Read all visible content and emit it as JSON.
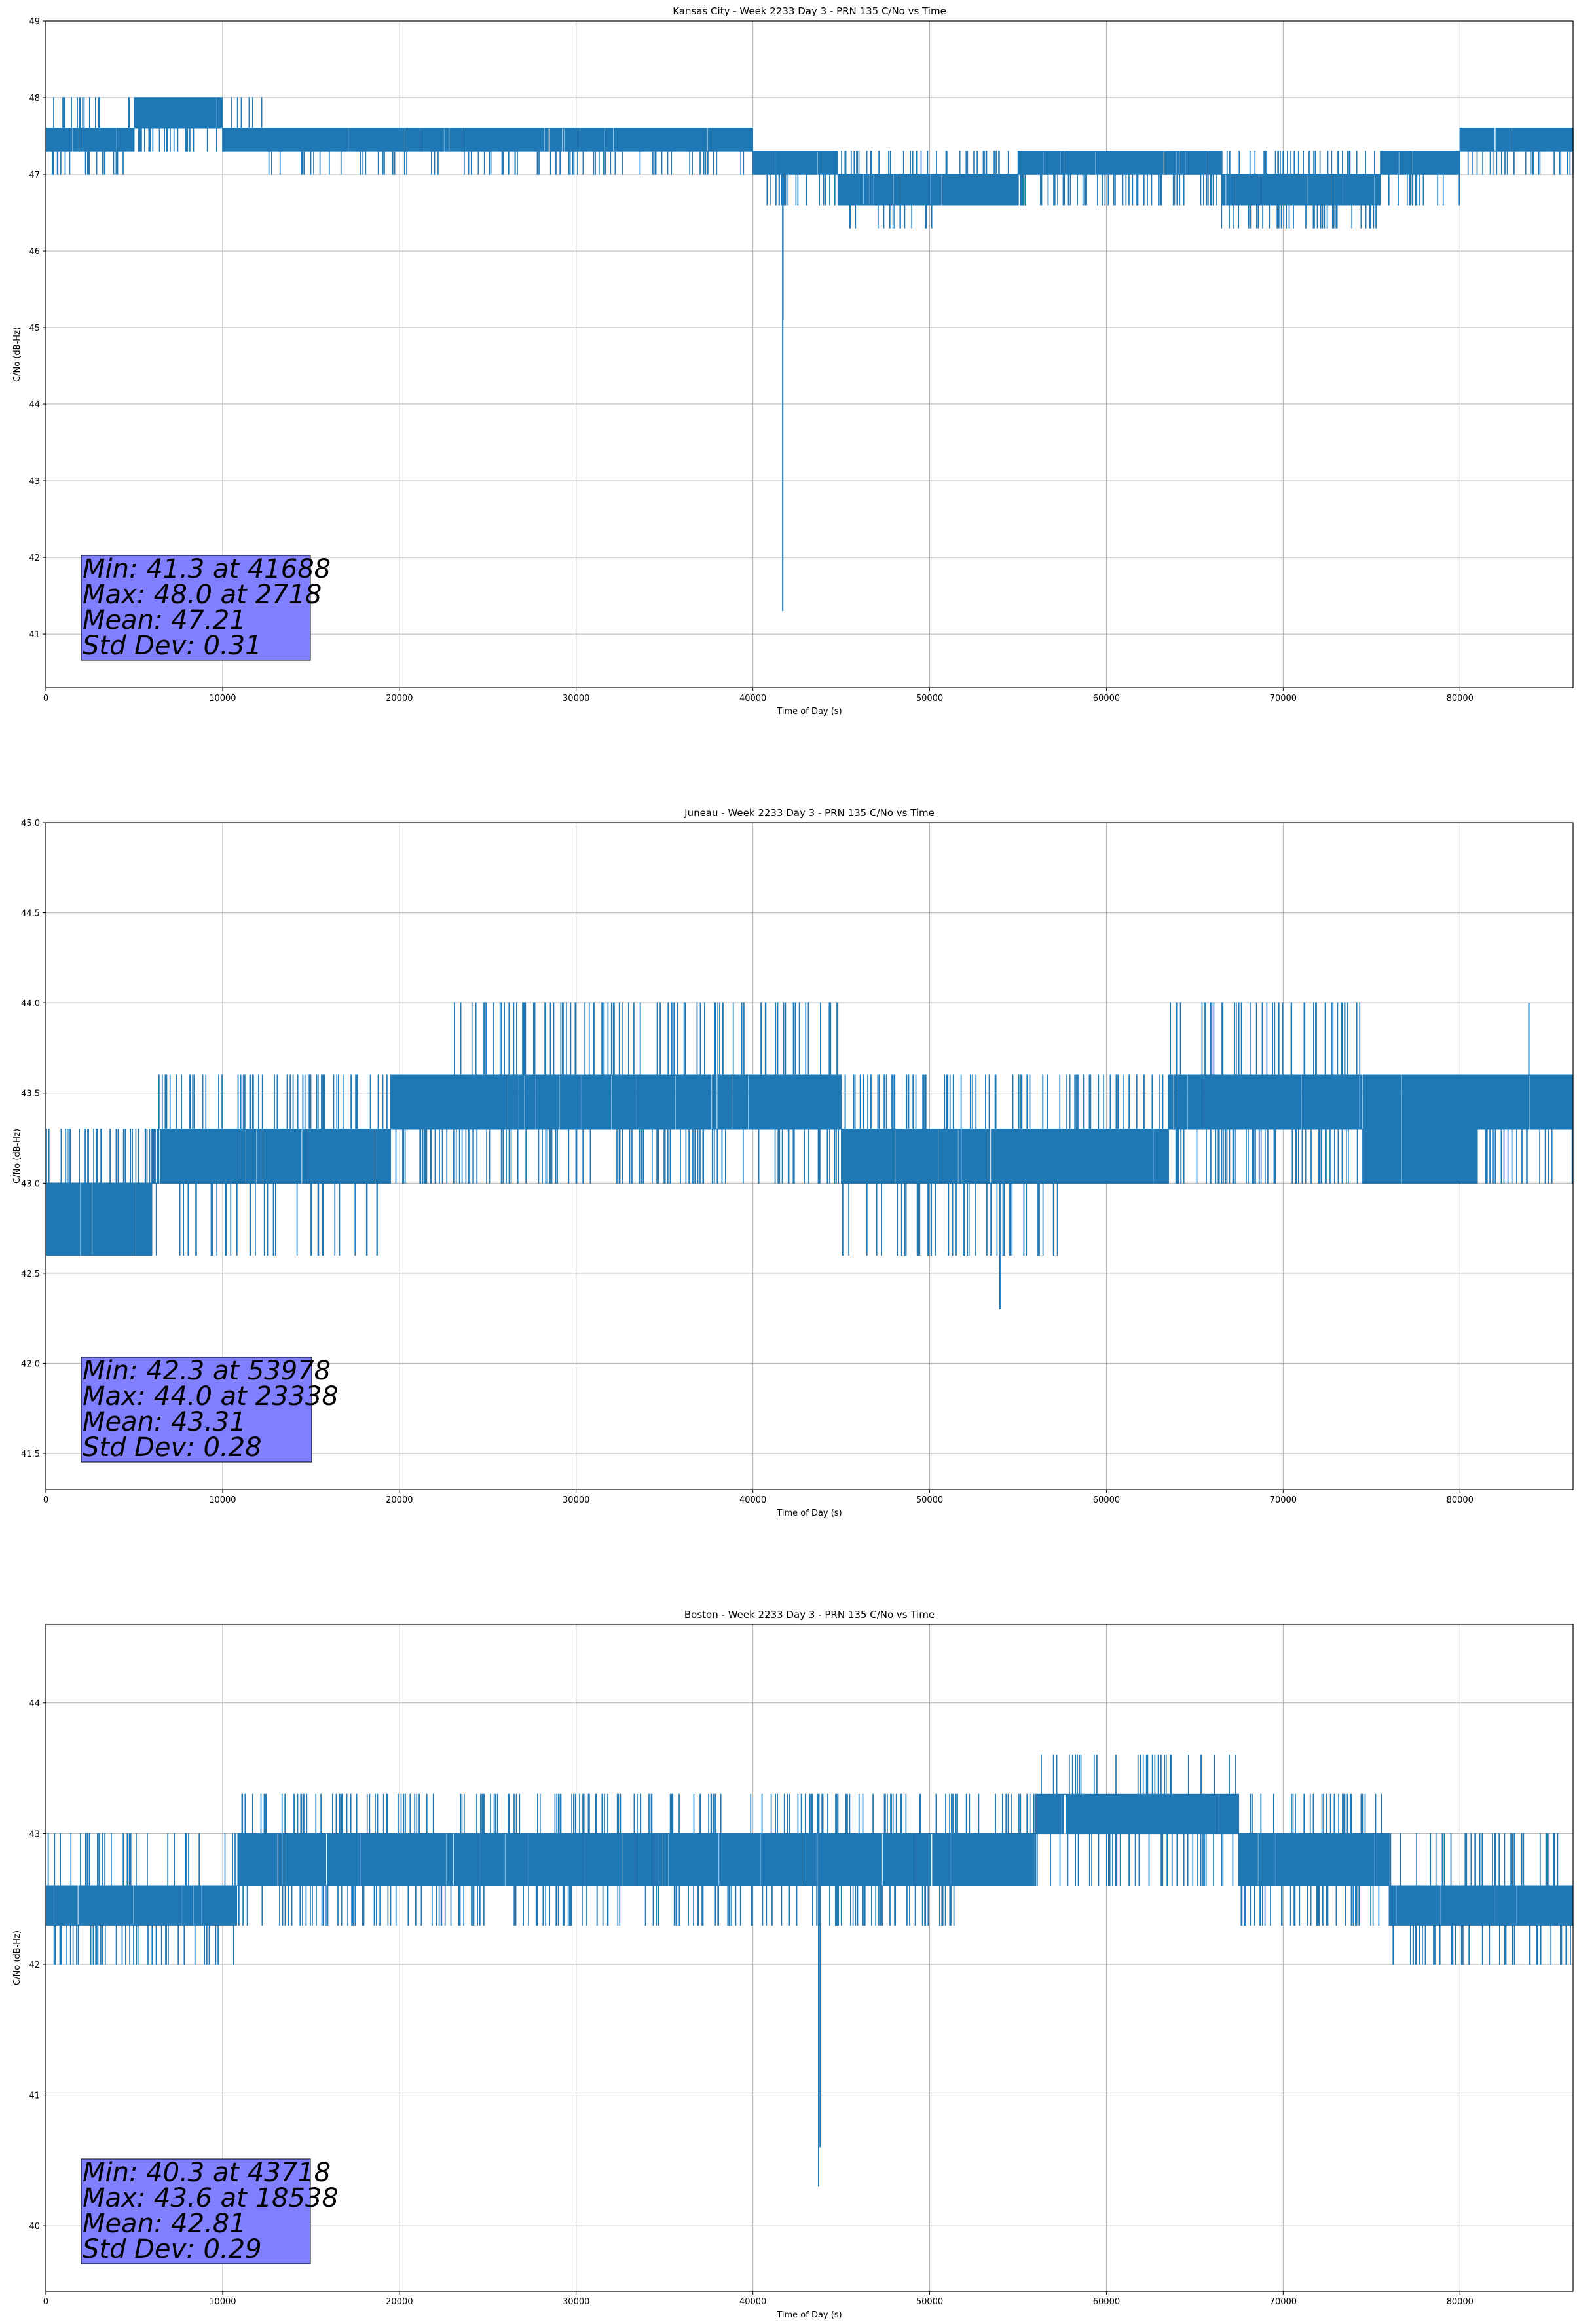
{
  "chart_data": [
    {
      "type": "line",
      "title": "Kansas City - Week 2233 Day 3 - PRN 135 C/No vs Time",
      "xlabel": "Time of Day (s)",
      "ylabel": "C/No (dB-Hz)",
      "xlim": [
        0,
        86400
      ],
      "ylim": [
        40.3,
        49
      ],
      "xticks": [
        0,
        10000,
        20000,
        30000,
        40000,
        50000,
        60000,
        70000,
        80000
      ],
      "yticks": [
        41,
        42,
        43,
        44,
        45,
        46,
        47,
        48,
        49
      ],
      "ytick_labels": [
        "41",
        "42",
        "43",
        "44",
        "45",
        "46",
        "47",
        "48",
        "49"
      ],
      "grid": true,
      "series_color": "#1f77b4",
      "stats_box_color": "#8080ff",
      "stats": [
        "Min: 41.3 at 41688",
        "Max: 48.0 at 2718",
        "Mean: 47.21",
        "Std Dev: 0.31"
      ],
      "segments": [
        {
          "x0": 0,
          "x1": 5000,
          "lo": 47.3,
          "hi": 47.6,
          "uh": 48.0,
          "dl": 47.0
        },
        {
          "x0": 5000,
          "x1": 10000,
          "lo": 47.6,
          "hi": 48.0,
          "uh": 48.0,
          "dl": 47.3
        },
        {
          "x0": 10000,
          "x1": 12300,
          "lo": 47.3,
          "hi": 47.6,
          "uh": 48.0,
          "dl": 47.3
        },
        {
          "x0": 12300,
          "x1": 36000,
          "lo": 47.3,
          "hi": 47.6,
          "uh": 47.6,
          "dl": 47.0
        },
        {
          "x0": 36000,
          "x1": 40000,
          "lo": 47.3,
          "hi": 47.6,
          "uh": 47.6,
          "dl": 47.0
        },
        {
          "x0": 40000,
          "x1": 44800,
          "lo": 47.0,
          "hi": 47.3,
          "uh": 47.3,
          "dl": 46.6
        },
        {
          "x0": 44800,
          "x1": 50500,
          "lo": 46.6,
          "hi": 47.0,
          "uh": 47.3,
          "dl": 46.3
        },
        {
          "x0": 50500,
          "x1": 55000,
          "lo": 46.6,
          "hi": 47.0,
          "uh": 47.3,
          "dl": 46.6
        },
        {
          "x0": 55000,
          "x1": 66500,
          "lo": 47.0,
          "hi": 47.3,
          "uh": 47.3,
          "dl": 46.6
        },
        {
          "x0": 66500,
          "x1": 75500,
          "lo": 46.6,
          "hi": 47.0,
          "uh": 47.3,
          "dl": 46.3
        },
        {
          "x0": 75500,
          "x1": 80000,
          "lo": 47.0,
          "hi": 47.3,
          "uh": 47.3,
          "dl": 46.6
        },
        {
          "x0": 80000,
          "x1": 86400,
          "lo": 47.3,
          "hi": 47.6,
          "uh": 47.6,
          "dl": 47.0
        }
      ],
      "spikes": [
        [
          41688,
          41.3
        ],
        [
          41700,
          45.1
        ]
      ]
    },
    {
      "type": "line",
      "title": "Juneau - Week 2233 Day 3 - PRN 135 C/No vs Time",
      "xlabel": "Time of Day (s)",
      "ylabel": "C/No (dB-Hz)",
      "xlim": [
        0,
        86400
      ],
      "ylim": [
        41.3,
        45.0
      ],
      "xticks": [
        0,
        10000,
        20000,
        30000,
        40000,
        50000,
        60000,
        70000,
        80000
      ],
      "yticks": [
        41.5,
        42.0,
        42.5,
        43.0,
        43.5,
        44.0,
        44.5,
        45.0
      ],
      "ytick_labels": [
        "41.5",
        "42.0",
        "42.5",
        "43.0",
        "43.5",
        "44.0",
        "44.5",
        "45.0"
      ],
      "grid": true,
      "series_color": "#1f77b4",
      "stats_box_color": "#8080ff",
      "stats": [
        "Min: 42.3 at 53978",
        "Max: 44.0 at 23338",
        "Mean: 43.31",
        "Std Dev: 0.28"
      ],
      "segments": [
        {
          "x0": 0,
          "x1": 6000,
          "lo": 42.6,
          "hi": 43.0,
          "uh": 43.3,
          "dl": 42.6
        },
        {
          "x0": 6000,
          "x1": 19500,
          "lo": 43.0,
          "hi": 43.3,
          "uh": 43.6,
          "dl": 42.6
        },
        {
          "x0": 19500,
          "x1": 23000,
          "lo": 43.3,
          "hi": 43.6,
          "uh": 43.6,
          "dl": 43.0
        },
        {
          "x0": 23000,
          "x1": 29500,
          "lo": 43.3,
          "hi": 43.6,
          "uh": 44.0,
          "dl": 43.0
        },
        {
          "x0": 29500,
          "x1": 45000,
          "lo": 43.3,
          "hi": 43.6,
          "uh": 44.0,
          "dl": 43.0
        },
        {
          "x0": 45000,
          "x1": 57500,
          "lo": 43.0,
          "hi": 43.3,
          "uh": 43.6,
          "dl": 42.6
        },
        {
          "x0": 57500,
          "x1": 63500,
          "lo": 43.0,
          "hi": 43.3,
          "uh": 43.6,
          "dl": 43.0
        },
        {
          "x0": 63500,
          "x1": 74500,
          "lo": 43.3,
          "hi": 43.6,
          "uh": 44.0,
          "dl": 43.0
        },
        {
          "x0": 74500,
          "x1": 81000,
          "lo": 43.0,
          "hi": 43.6,
          "uh": 43.6,
          "dl": 43.0
        },
        {
          "x0": 81000,
          "x1": 86400,
          "lo": 43.3,
          "hi": 43.6,
          "uh": 43.6,
          "dl": 43.0
        }
      ],
      "spikes": [
        [
          53978,
          42.3
        ],
        [
          83900,
          44.0
        ]
      ]
    },
    {
      "type": "line",
      "title": "Boston - Week 2233 Day 3 - PRN 135 C/No vs Time",
      "xlabel": "Time of Day (s)",
      "ylabel": "C/No (dB-Hz)",
      "xlim": [
        0,
        86400
      ],
      "ylim": [
        39.5,
        44.6
      ],
      "xticks": [
        0,
        10000,
        20000,
        30000,
        40000,
        50000,
        60000,
        70000,
        80000
      ],
      "yticks": [
        40,
        41,
        42,
        43,
        44
      ],
      "ytick_labels": [
        "40",
        "41",
        "42",
        "43",
        "44"
      ],
      "grid": true,
      "series_color": "#1f77b4",
      "stats_box_color": "#8080ff",
      "stats": [
        "Min: 40.3 at 43718",
        "Max: 43.6 at 18538",
        "Mean: 42.81",
        "Std Dev: 0.29"
      ],
      "segments": [
        {
          "x0": 0,
          "x1": 10800,
          "lo": 42.3,
          "hi": 42.6,
          "uh": 43.0,
          "dl": 42.0
        },
        {
          "x0": 10800,
          "x1": 13000,
          "lo": 42.6,
          "hi": 43.0,
          "uh": 43.3,
          "dl": 42.3
        },
        {
          "x0": 13000,
          "x1": 52000,
          "lo": 42.6,
          "hi": 43.0,
          "uh": 43.3,
          "dl": 42.3
        },
        {
          "x0": 52000,
          "x1": 56000,
          "lo": 42.6,
          "hi": 43.0,
          "uh": 43.3,
          "dl": 42.6
        },
        {
          "x0": 56000,
          "x1": 67500,
          "lo": 43.0,
          "hi": 43.3,
          "uh": 43.6,
          "dl": 42.6
        },
        {
          "x0": 67500,
          "x1": 76000,
          "lo": 42.6,
          "hi": 43.0,
          "uh": 43.3,
          "dl": 42.3
        },
        {
          "x0": 76000,
          "x1": 86400,
          "lo": 42.3,
          "hi": 42.6,
          "uh": 43.0,
          "dl": 42.0
        }
      ],
      "spikes": [
        [
          43718,
          40.3
        ],
        [
          43800,
          40.6
        ]
      ]
    }
  ]
}
